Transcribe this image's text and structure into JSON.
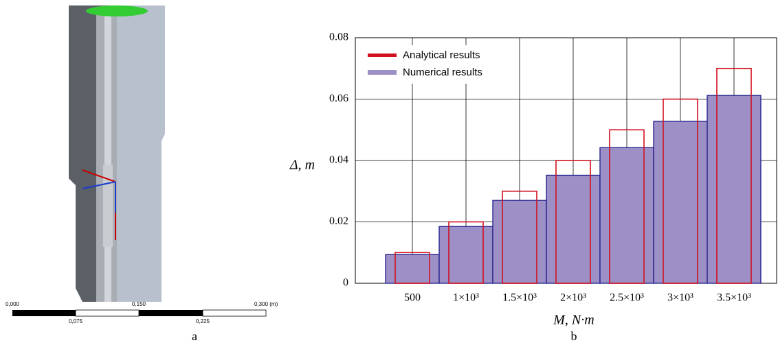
{
  "chart_data": {
    "type": "bar",
    "ylabel": "Δ, m",
    "xlabel": "M, N·m",
    "categories": [
      "500",
      "1×10³",
      "1.5×10³",
      "2×10³",
      "2.5×10³",
      "3×10³",
      "3.5×10³"
    ],
    "series": [
      {
        "name": "Analytical results",
        "color": "#d0101e",
        "values": [
          0.01,
          0.02,
          0.03,
          0.04,
          0.05,
          0.06,
          0.07
        ]
      },
      {
        "name": "Numerical results",
        "color": "#9d90c6",
        "values": [
          0.0094,
          0.0185,
          0.027,
          0.0352,
          0.0442,
          0.0528,
          0.0612
        ]
      }
    ],
    "ylim": [
      0,
      0.08
    ],
    "yticks": [
      0,
      0.02,
      0.04,
      0.06,
      0.08
    ],
    "grid": true,
    "legend": "upper left"
  },
  "scale_bar": {
    "top_labels": [
      "0,000",
      "0,150",
      "0,300 (m)"
    ],
    "bottom_labels": [
      "0,075",
      "0,225"
    ]
  },
  "panel_labels": [
    "a",
    "b"
  ]
}
